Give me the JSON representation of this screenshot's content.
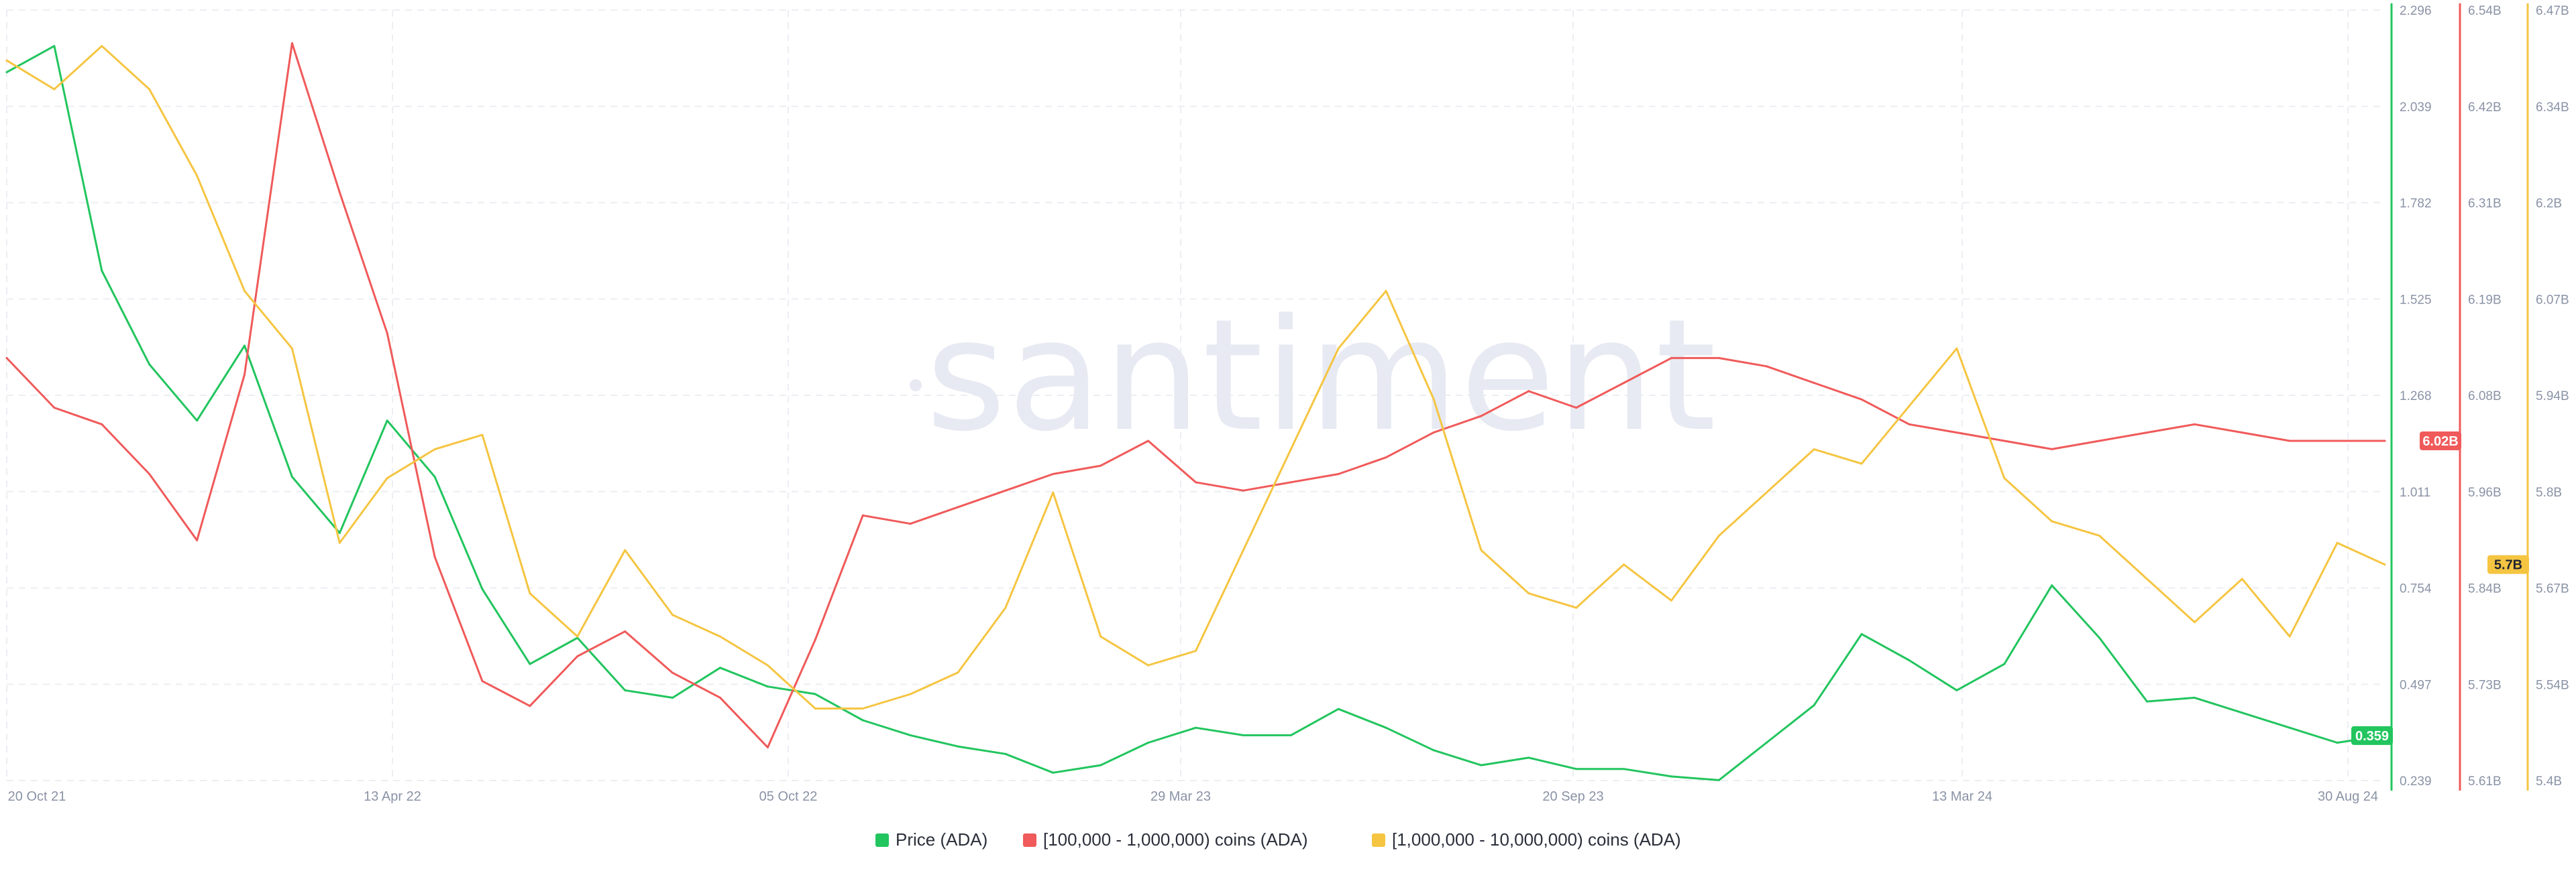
{
  "watermark": "santiment",
  "chart_data": {
    "type": "line",
    "title": "",
    "xlabel": "",
    "grid": true,
    "legend": "bottom-center",
    "x_ticks": [
      "20 Oct 21",
      "13 Apr 22",
      "05 Oct 22",
      "29 Mar 23",
      "20 Sep 23",
      "13 Mar 24",
      "30 Aug 24"
    ],
    "axes": [
      {
        "id": "price",
        "color": "#22c55e",
        "ylim": [
          0.239,
          2.296
        ],
        "ticks": [
          "2.296",
          "2.039",
          "1.782",
          "1.525",
          "1.268",
          "1.011",
          "0.754",
          "0.497",
          "0.239"
        ]
      },
      {
        "id": "tier100k",
        "color": "#f05a5a",
        "ylim": [
          5.61,
          6.54
        ],
        "ticks": [
          "6.54B",
          "6.42B",
          "6.31B",
          "6.19B",
          "6.08B",
          "5.96B",
          "5.84B",
          "5.73B",
          "5.61B"
        ]
      },
      {
        "id": "tier1m",
        "color": "#f5c542",
        "ylim": [
          5.4,
          6.47
        ],
        "ticks": [
          "6.47B",
          "6.34B",
          "6.2B",
          "6.07B",
          "5.94B",
          "5.8B",
          "5.67B",
          "5.54B",
          "5.4B"
        ]
      }
    ],
    "series": [
      {
        "name": "Price (ADA)",
        "axis": "price",
        "color": "#22c55e",
        "last_label": "0.359",
        "x": [
          0,
          0.02,
          0.04,
          0.06,
          0.08,
          0.1,
          0.12,
          0.14,
          0.16,
          0.18,
          0.2,
          0.22,
          0.24,
          0.26,
          0.28,
          0.3,
          0.32,
          0.34,
          0.36,
          0.38,
          0.4,
          0.42,
          0.44,
          0.46,
          0.48,
          0.5,
          0.52,
          0.54,
          0.56,
          0.58,
          0.6,
          0.62,
          0.64,
          0.66,
          0.68,
          0.7,
          0.72,
          0.74,
          0.76,
          0.78,
          0.8,
          0.82,
          0.84,
          0.86,
          0.88,
          0.9,
          0.92,
          0.94,
          0.96,
          0.98,
          1.0
        ],
        "values": [
          2.13,
          2.2,
          1.6,
          1.35,
          1.2,
          1.4,
          1.05,
          0.9,
          1.2,
          1.05,
          0.75,
          0.55,
          0.62,
          0.48,
          0.46,
          0.54,
          0.49,
          0.47,
          0.4,
          0.36,
          0.33,
          0.31,
          0.26,
          0.28,
          0.34,
          0.38,
          0.36,
          0.36,
          0.43,
          0.38,
          0.32,
          0.28,
          0.3,
          0.27,
          0.27,
          0.25,
          0.24,
          0.34,
          0.44,
          0.63,
          0.56,
          0.48,
          0.55,
          0.76,
          0.62,
          0.45,
          0.46,
          0.42,
          0.38,
          0.34,
          0.359
        ]
      },
      {
        "name": "[100,000  - 1,000,000) coins (ADA)",
        "axis": "tier100k",
        "color": "#f05a5a",
        "last_label": "6.02B",
        "x": [
          0,
          0.02,
          0.04,
          0.06,
          0.08,
          0.1,
          0.12,
          0.14,
          0.16,
          0.18,
          0.2,
          0.22,
          0.24,
          0.26,
          0.28,
          0.3,
          0.32,
          0.34,
          0.36,
          0.38,
          0.4,
          0.42,
          0.44,
          0.46,
          0.48,
          0.5,
          0.52,
          0.54,
          0.56,
          0.58,
          0.6,
          0.62,
          0.64,
          0.66,
          0.68,
          0.7,
          0.72,
          0.74,
          0.76,
          0.78,
          0.8,
          0.82,
          0.84,
          0.86,
          0.88,
          0.9,
          0.92,
          0.94,
          0.96,
          0.98,
          1.0
        ],
        "values": [
          6.12,
          6.06,
          6.04,
          5.98,
          5.9,
          6.1,
          6.5,
          6.32,
          6.15,
          5.88,
          5.73,
          5.7,
          5.76,
          5.79,
          5.74,
          5.71,
          5.65,
          5.78,
          5.93,
          5.92,
          5.94,
          5.96,
          5.98,
          5.99,
          6.02,
          5.97,
          5.96,
          5.97,
          5.98,
          6.0,
          6.03,
          6.05,
          6.08,
          6.06,
          6.09,
          6.12,
          6.12,
          6.11,
          6.09,
          6.07,
          6.04,
          6.03,
          6.02,
          6.01,
          6.02,
          6.03,
          6.04,
          6.03,
          6.02,
          6.02,
          6.02
        ]
      },
      {
        "name": "[1,000,000 - 10,000,000) coins (ADA)",
        "axis": "tier1m",
        "color": "#f5c542",
        "last_label": "5.7B",
        "x": [
          0,
          0.02,
          0.04,
          0.06,
          0.08,
          0.1,
          0.12,
          0.14,
          0.16,
          0.18,
          0.2,
          0.22,
          0.24,
          0.26,
          0.28,
          0.3,
          0.32,
          0.34,
          0.36,
          0.38,
          0.4,
          0.42,
          0.44,
          0.46,
          0.48,
          0.5,
          0.52,
          0.54,
          0.56,
          0.58,
          0.6,
          0.62,
          0.64,
          0.66,
          0.68,
          0.7,
          0.72,
          0.74,
          0.76,
          0.78,
          0.8,
          0.82,
          0.84,
          0.86,
          0.88,
          0.9,
          0.92,
          0.94,
          0.96,
          0.98,
          1.0
        ],
        "values": [
          6.4,
          6.36,
          6.42,
          6.36,
          6.24,
          6.08,
          6.0,
          5.73,
          5.82,
          5.86,
          5.88,
          5.66,
          5.6,
          5.72,
          5.63,
          5.6,
          5.56,
          5.5,
          5.5,
          5.52,
          5.55,
          5.64,
          5.8,
          5.6,
          5.56,
          5.58,
          5.72,
          5.86,
          6.0,
          6.08,
          5.93,
          5.72,
          5.66,
          5.64,
          5.7,
          5.65,
          5.74,
          5.8,
          5.86,
          5.84,
          5.92,
          6.0,
          5.82,
          5.76,
          5.74,
          5.68,
          5.62,
          5.68,
          5.6,
          5.73,
          5.7
        ]
      }
    ]
  }
}
